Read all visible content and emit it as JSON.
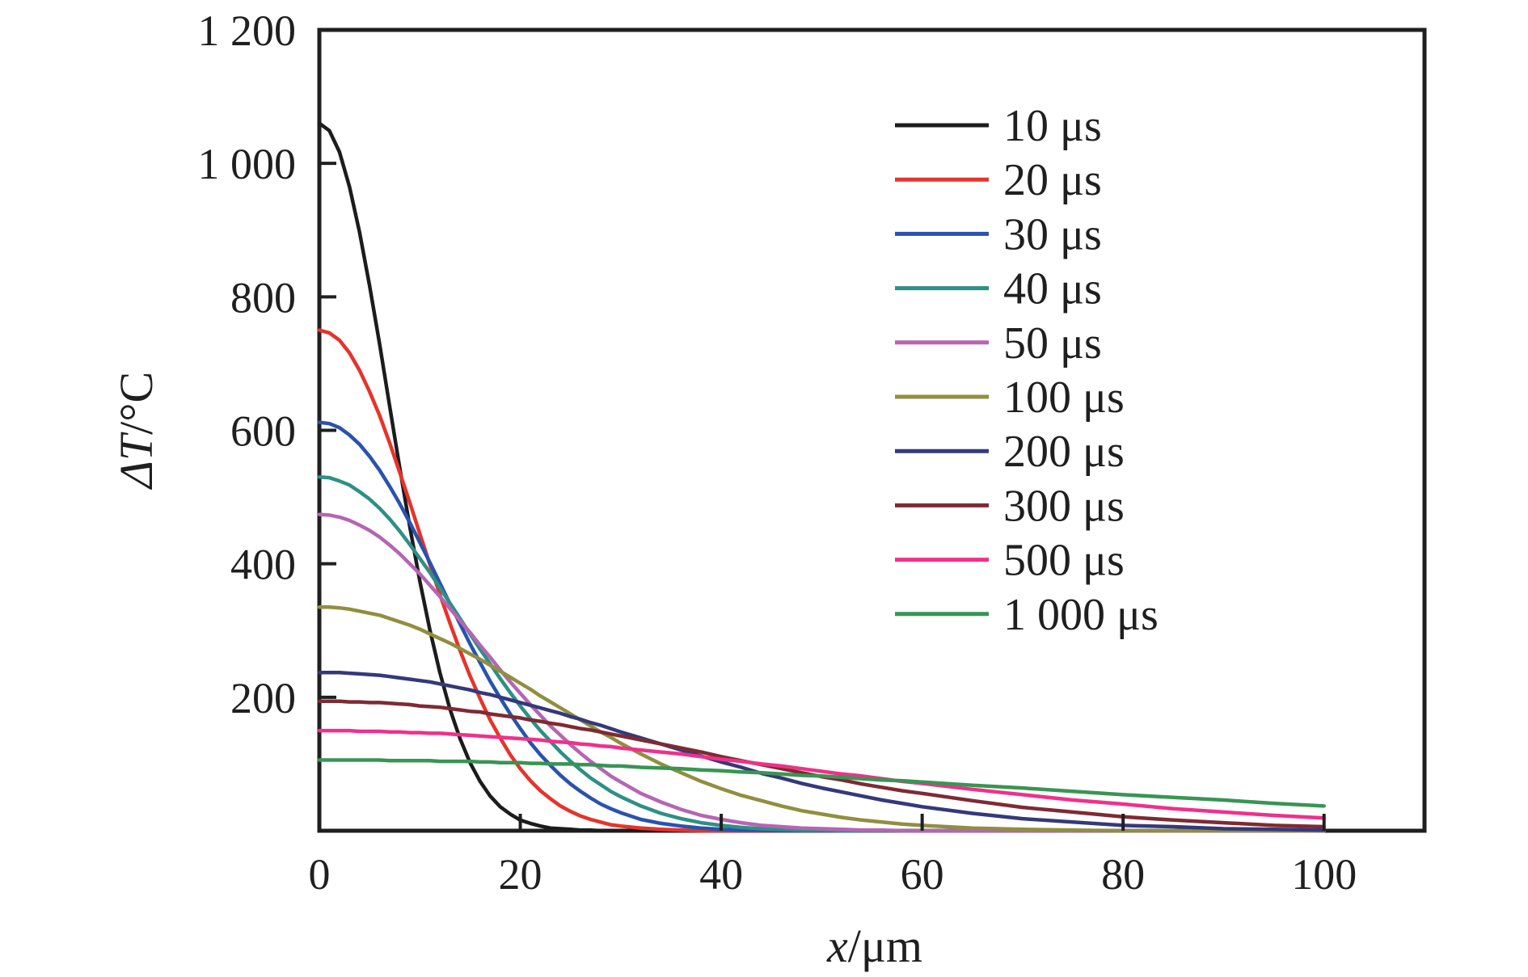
{
  "figure": {
    "description": "Temperature rise distribution curves vs depth for different pulse durations",
    "background_color": "#ffffff",
    "frame_color": "#1f1f1f"
  },
  "chart_data": {
    "type": "line",
    "title": "",
    "xlabel_var": "x",
    "xlabel_unit": "/μm",
    "ylabel_var": "ΔT",
    "ylabel_unit": "/°C",
    "xlim": [
      0,
      110
    ],
    "ylim": [
      0,
      1200
    ],
    "grid": false,
    "legend_position": "upper-right-inside",
    "xticks": [
      {
        "value": 0,
        "label": "0"
      },
      {
        "value": 20,
        "label": "20"
      },
      {
        "value": 40,
        "label": "40"
      },
      {
        "value": 60,
        "label": "60"
      },
      {
        "value": 80,
        "label": "80"
      },
      {
        "value": 100,
        "label": "100"
      }
    ],
    "yticks": [
      {
        "value": 200,
        "label": "200"
      },
      {
        "value": 400,
        "label": "400"
      },
      {
        "value": 600,
        "label": "600"
      },
      {
        "value": 800,
        "label": "800"
      },
      {
        "value": 1000,
        "label": "1 000"
      },
      {
        "value": 1200,
        "label": "1 200"
      }
    ],
    "x": [
      0,
      1,
      2,
      3,
      4,
      5,
      6,
      7,
      8,
      9,
      10,
      11,
      12,
      13,
      14,
      15,
      16,
      17,
      18,
      19,
      20,
      21,
      22,
      23,
      24,
      25,
      26,
      27,
      28,
      29,
      30,
      32,
      34,
      36,
      38,
      40,
      42,
      44,
      46,
      48,
      50,
      52,
      54,
      56,
      58,
      60,
      65,
      70,
      75,
      80,
      85,
      90,
      95,
      100
    ],
    "series": [
      {
        "name": "10 μs",
        "color": "#1c1c1c",
        "values": [
          1060,
          1049,
          1017,
          965,
          897,
          817,
          729,
          636,
          544,
          456,
          374,
          301,
          237,
          182,
          138,
          102,
          74,
          52,
          36,
          25,
          16,
          11,
          7,
          4,
          3,
          2,
          1,
          1,
          0,
          0,
          0,
          0,
          0,
          0,
          0,
          0,
          0,
          0,
          0,
          0,
          0,
          0,
          0,
          0,
          0,
          0,
          0,
          0,
          0,
          0,
          0,
          0,
          0,
          0
        ]
      },
      {
        "name": "20 μs",
        "color": "#e6332b",
        "values": [
          750,
          746,
          735,
          716,
          690,
          658,
          622,
          581,
          537,
          492,
          445,
          399,
          354,
          311,
          270,
          232,
          198,
          166,
          139,
          114,
          93,
          75,
          60,
          48,
          37,
          29,
          22,
          17,
          13,
          9,
          7,
          4,
          2,
          1,
          0,
          0,
          0,
          0,
          0,
          0,
          0,
          0,
          0,
          0,
          0,
          0,
          0,
          0,
          0,
          0,
          0,
          0,
          0,
          0
        ]
      },
      {
        "name": "30 μs",
        "color": "#2a52ae",
        "values": [
          612,
          610,
          604,
          593,
          579,
          561,
          540,
          516,
          490,
          462,
          432,
          402,
          371,
          340,
          310,
          280,
          252,
          224,
          199,
          175,
          153,
          132,
          114,
          98,
          83,
          70,
          59,
          49,
          40,
          33,
          27,
          17,
          11,
          7,
          4,
          2,
          1,
          1,
          0,
          0,
          0,
          0,
          0,
          0,
          0,
          0,
          0,
          0,
          0,
          0,
          0,
          0,
          0,
          0
        ]
      },
      {
        "name": "40 μs",
        "color": "#2e8f85",
        "values": [
          530,
          529,
          524,
          518,
          508,
          497,
          483,
          467,
          449,
          429,
          408,
          387,
          364,
          341,
          318,
          295,
          272,
          250,
          228,
          207,
          187,
          168,
          150,
          134,
          118,
          104,
          91,
          79,
          69,
          59,
          51,
          37,
          26,
          18,
          12,
          8,
          5,
          3,
          2,
          1,
          1,
          0,
          0,
          0,
          0,
          0,
          0,
          0,
          0,
          0,
          0,
          0,
          0,
          0
        ]
      },
      {
        "name": "50 μs",
        "color": "#b565b3",
        "values": [
          474,
          473,
          470,
          465,
          458,
          450,
          440,
          428,
          415,
          400,
          385,
          368,
          351,
          333,
          315,
          297,
          278,
          260,
          241,
          223,
          206,
          189,
          173,
          157,
          143,
          129,
          116,
          104,
          93,
          82,
          73,
          56,
          43,
          32,
          23,
          17,
          12,
          8,
          6,
          4,
          3,
          2,
          1,
          1,
          0,
          0,
          0,
          0,
          0,
          0,
          0,
          0,
          0,
          0
        ]
      },
      {
        "name": "100 μs",
        "color": "#918e40",
        "values": [
          335,
          335,
          334,
          332,
          329,
          326,
          323,
          318,
          313,
          308,
          302,
          295,
          288,
          281,
          273,
          265,
          257,
          248,
          239,
          230,
          221,
          212,
          202,
          193,
          184,
          175,
          166,
          157,
          148,
          140,
          131,
          115,
          100,
          87,
          74,
          63,
          53,
          45,
          37,
          30,
          25,
          20,
          16,
          13,
          10,
          8,
          4,
          2,
          1,
          0,
          0,
          0,
          0,
          0
        ]
      },
      {
        "name": "200 μs",
        "color": "#35397a",
        "values": [
          237,
          237,
          237,
          236,
          235,
          234,
          233,
          231,
          229,
          227,
          225,
          223,
          220,
          217,
          214,
          211,
          207,
          204,
          200,
          196,
          192,
          188,
          184,
          180,
          176,
          171,
          167,
          162,
          158,
          153,
          148,
          139,
          130,
          121,
          112,
          103,
          95,
          86,
          79,
          71,
          64,
          58,
          52,
          46,
          41,
          36,
          26,
          18,
          13,
          8,
          6,
          3,
          2,
          1
        ]
      },
      {
        "name": "300 μs",
        "color": "#7f2a33",
        "values": [
          194,
          194,
          194,
          193,
          193,
          192,
          192,
          191,
          190,
          189,
          187,
          186,
          185,
          183,
          181,
          179,
          178,
          175,
          173,
          171,
          169,
          166,
          164,
          161,
          159,
          156,
          153,
          151,
          148,
          145,
          142,
          136,
          130,
          124,
          118,
          111,
          105,
          99,
          93,
          87,
          81,
          76,
          70,
          65,
          60,
          56,
          45,
          35,
          28,
          21,
          16,
          12,
          8,
          6
        ]
      },
      {
        "name": "500 μs",
        "color": "#f0308a",
        "values": [
          150,
          150,
          150,
          150,
          149,
          149,
          149,
          148,
          148,
          147,
          147,
          146,
          146,
          145,
          144,
          143,
          142,
          141,
          140,
          139,
          138,
          137,
          136,
          134,
          133,
          132,
          130,
          129,
          127,
          126,
          124,
          121,
          118,
          115,
          111,
          107,
          104,
          100,
          97,
          93,
          89,
          85,
          82,
          78,
          74,
          71,
          62,
          54,
          46,
          40,
          33,
          28,
          23,
          19
        ]
      },
      {
        "name": "1 000 μs",
        "color": "#389553",
        "values": [
          106,
          106,
          106,
          106,
          106,
          106,
          106,
          105,
          105,
          105,
          105,
          105,
          104,
          104,
          104,
          104,
          103,
          103,
          102,
          102,
          102,
          101,
          101,
          100,
          100,
          100,
          99,
          99,
          98,
          97,
          97,
          95,
          94,
          93,
          91,
          90,
          88,
          87,
          85,
          83,
          82,
          80,
          78,
          76,
          75,
          73,
          68,
          64,
          59,
          54,
          50,
          46,
          41,
          37
        ]
      }
    ]
  }
}
